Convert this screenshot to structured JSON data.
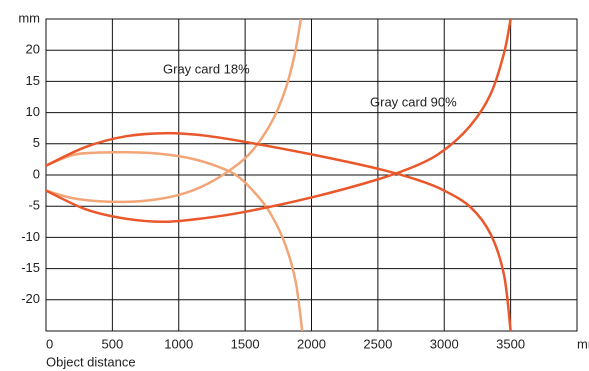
{
  "chart_data": {
    "type": "line",
    "xlabel": "Object distance",
    "xlim": [
      0,
      4000
    ],
    "ylim": [
      -25,
      25
    ],
    "xticks": [
      0,
      500,
      1000,
      1500,
      2000,
      2500,
      3000,
      3500,
      {
        "value": 4000,
        "label": "mm"
      }
    ],
    "yticks": [
      -20,
      -15,
      -10,
      -5,
      0,
      5,
      10,
      15,
      20,
      {
        "value": 25,
        "label": "mm"
      }
    ],
    "grid": true,
    "series": [
      {
        "name": "Gray card 18%",
        "color": "#f2a577",
        "x": [
          0,
          200,
          400,
          700,
          900,
          1100,
          1300,
          1450,
          1600,
          1700,
          1800,
          1880,
          1930
        ],
        "values": [
          1.5,
          3.2,
          3.6,
          3.6,
          3.3,
          2.6,
          1.3,
          -0.3,
          -3.5,
          -6.5,
          -11,
          -17,
          -25
        ]
      },
      {
        "color": "#f2a577",
        "x": [
          0,
          200,
          400,
          600,
          800,
          1000,
          1200,
          1400,
          1550,
          1700,
          1800,
          1870,
          1920
        ],
        "values": [
          -2.5,
          -3.7,
          -4.2,
          -4.3,
          -4.0,
          -3.2,
          -1.6,
          1.0,
          3.8,
          8.5,
          13.5,
          19,
          25
        ]
      },
      {
        "name": "Gray card 90%",
        "color": "#e9572b",
        "x": [
          0,
          300,
          600,
          900,
          1200,
          1500,
          2000,
          2500,
          2800,
          3000,
          3200,
          3350,
          3450,
          3500
        ],
        "values": [
          1.5,
          4.5,
          6.2,
          6.7,
          6.3,
          5.3,
          3.3,
          1.0,
          -0.8,
          -2.5,
          -5.2,
          -9.5,
          -16,
          -25
        ]
      },
      {
        "color": "#e9572b",
        "x": [
          0,
          300,
          600,
          900,
          1200,
          1500,
          2000,
          2500,
          2800,
          3000,
          3200,
          3350,
          3450,
          3500
        ],
        "values": [
          -2.5,
          -5.5,
          -7.0,
          -7.5,
          -6.9,
          -5.9,
          -3.6,
          -0.7,
          1.6,
          4.0,
          8.0,
          13.0,
          19.5,
          25
        ]
      }
    ]
  }
}
